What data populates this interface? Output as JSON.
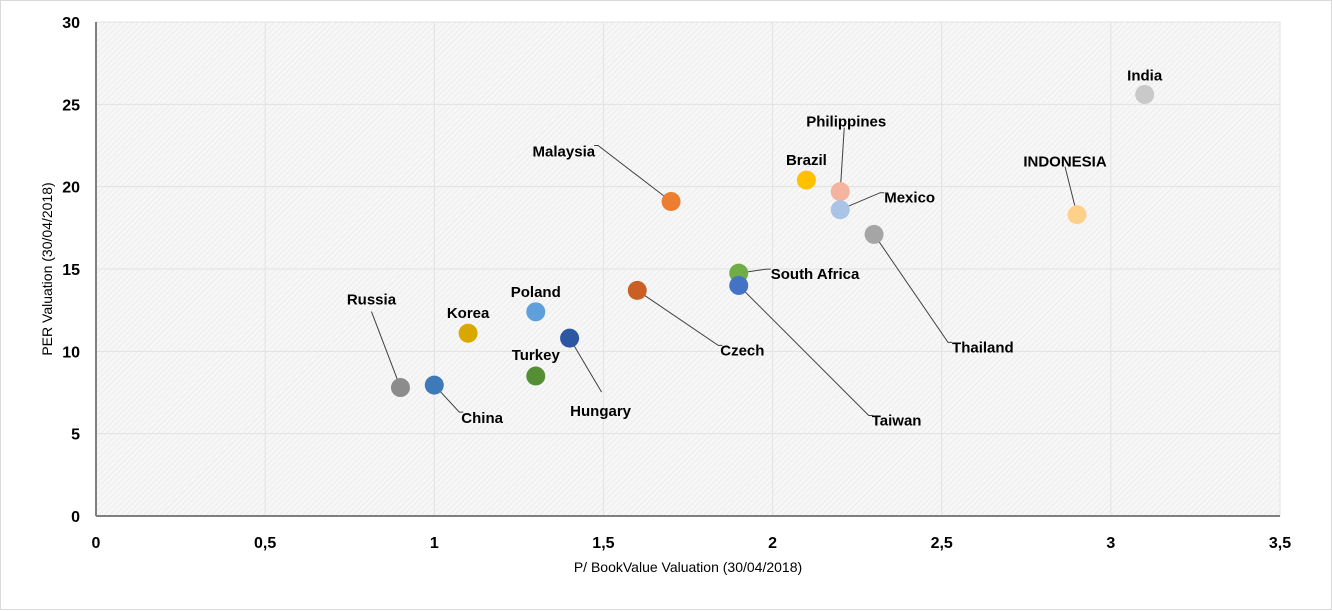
{
  "chart_data": {
    "type": "scatter",
    "title": "",
    "xlabel": "P/ BookValue Valuation (30/04/2018)",
    "ylabel": "PER Valuation (30/04/2018)",
    "xlim": [
      0,
      3.5
    ],
    "ylim": [
      0,
      30
    ],
    "x_ticks": [
      0,
      0.5,
      1,
      1.5,
      2,
      2.5,
      3,
      3.5
    ],
    "x_tick_labels": [
      "0",
      "0,5",
      "1",
      "1,5",
      "2",
      "2,5",
      "3",
      "3,5"
    ],
    "y_ticks": [
      0,
      5,
      10,
      15,
      20,
      25,
      30
    ],
    "y_tick_labels": [
      "0",
      "5",
      "10",
      "15",
      "20",
      "25",
      "30"
    ],
    "grid": true,
    "legend": "none",
    "points": [
      {
        "label": "Russia",
        "x": 0.9,
        "y": 7.8,
        "color": "#8c8c8c"
      },
      {
        "label": "China",
        "x": 1.0,
        "y": 7.95,
        "color": "#3f7ab8"
      },
      {
        "label": "Korea",
        "x": 1.1,
        "y": 11.1,
        "color": "#d9a800"
      },
      {
        "label": "Poland",
        "x": 1.3,
        "y": 12.4,
        "color": "#5fa0da"
      },
      {
        "label": "Turkey",
        "x": 1.3,
        "y": 8.5,
        "color": "#548f35"
      },
      {
        "label": "Hungary",
        "x": 1.4,
        "y": 10.8,
        "color": "#2d56a3"
      },
      {
        "label": "Czech",
        "x": 1.6,
        "y": 13.7,
        "color": "#c95f22"
      },
      {
        "label": "Malaysia",
        "x": 1.7,
        "y": 19.1,
        "color": "#ed7d31"
      },
      {
        "label": "South Africa",
        "x": 1.9,
        "y": 14.75,
        "color": "#70ad47"
      },
      {
        "label": "Taiwan",
        "x": 1.9,
        "y": 14.0,
        "color": "#4472c4"
      },
      {
        "label": "Brazil",
        "x": 2.1,
        "y": 20.4,
        "color": "#ffc000"
      },
      {
        "label": "Philippines",
        "x": 2.2,
        "y": 19.7,
        "color": "#f4b4a0"
      },
      {
        "label": "Mexico",
        "x": 2.2,
        "y": 18.6,
        "color": "#a9c4e6"
      },
      {
        "label": "Thailand",
        "x": 2.3,
        "y": 17.1,
        "color": "#a5a5a5"
      },
      {
        "label": "INDONESIA",
        "x": 2.9,
        "y": 18.3,
        "color": "#ffd08a"
      },
      {
        "label": "India",
        "x": 3.1,
        "y": 25.6,
        "color": "#c9c9c9"
      }
    ]
  }
}
